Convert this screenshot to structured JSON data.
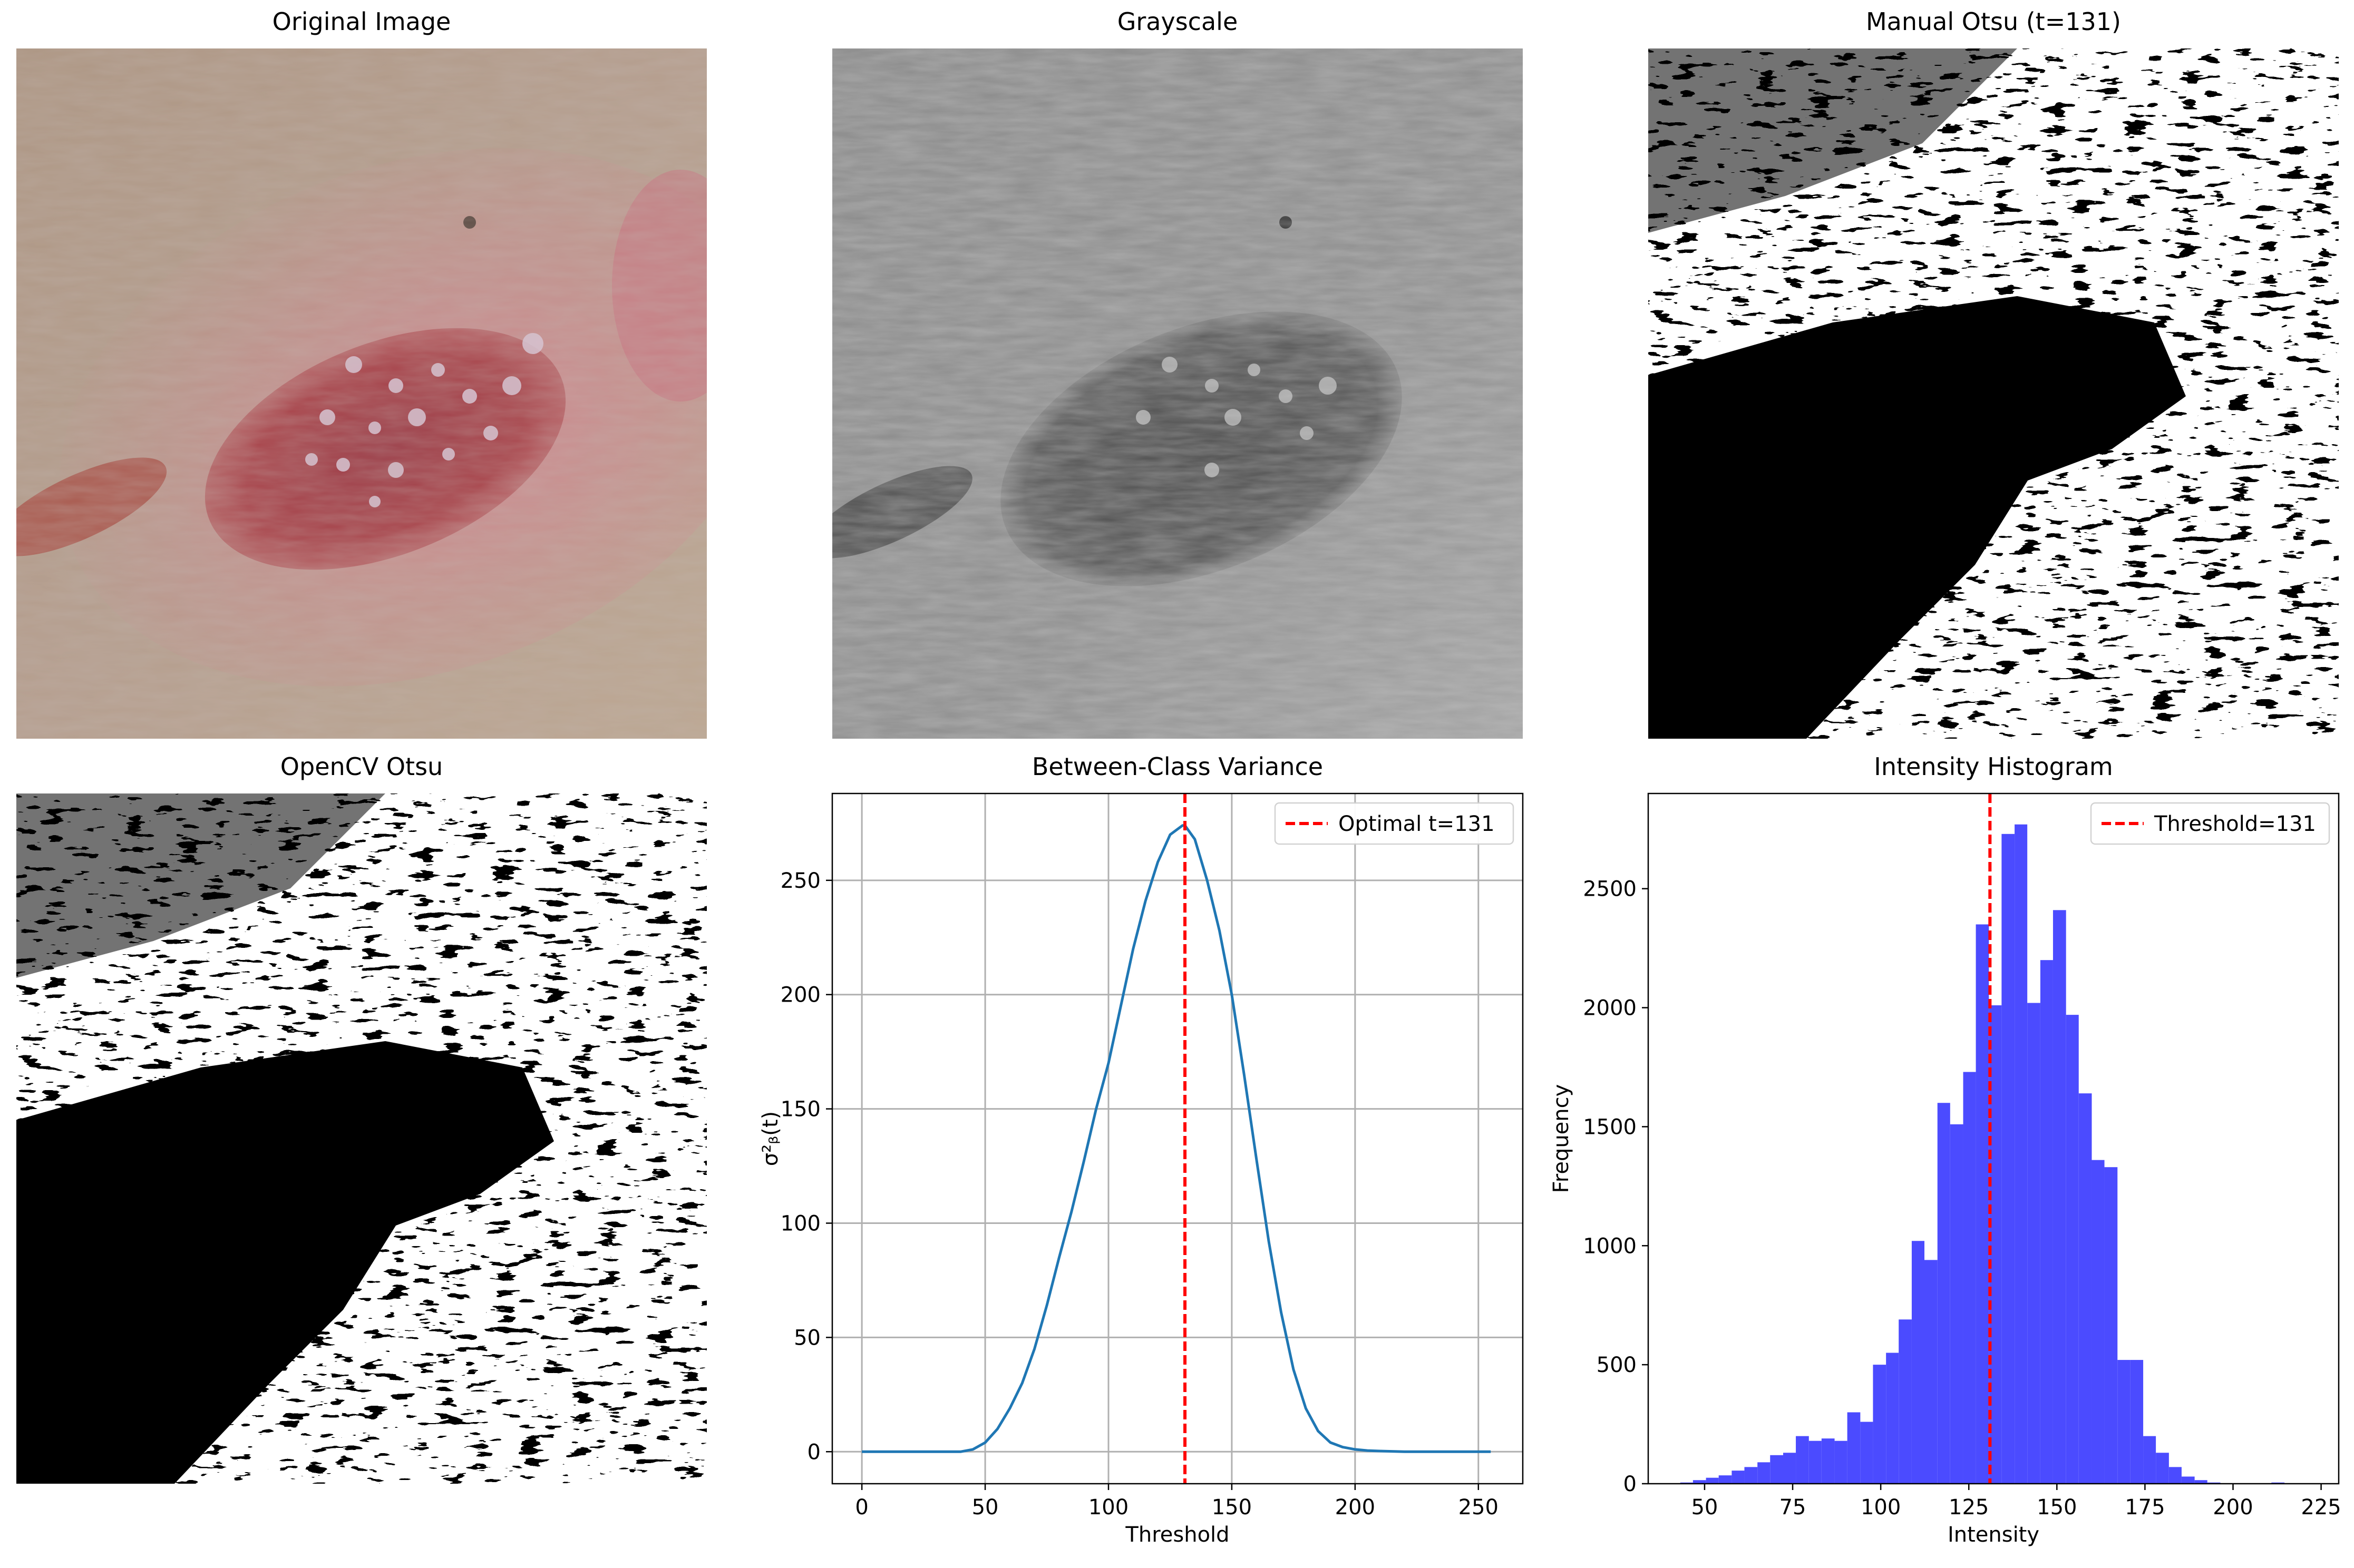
{
  "panels": {
    "original": {
      "title": "Original Image"
    },
    "grayscale": {
      "title": "Grayscale"
    },
    "manual": {
      "title": "Manual Otsu (t=131)"
    },
    "opencv": {
      "title": "OpenCV Otsu"
    },
    "variance": {
      "title": "Between-Class Variance"
    },
    "histogram": {
      "title": "Intensity Histogram"
    }
  },
  "colors": {
    "curve": "#1f77b4",
    "threshold_line": "#ff0000",
    "hist_bar": "#4b4bff",
    "skin_base": "#b79f8c",
    "lesion": "#a8434a",
    "redness": "#d77d8d"
  },
  "chart_data": [
    {
      "type": "line",
      "title": "Between-Class Variance",
      "xlabel": "Threshold",
      "ylabel": "σ²_B(t)",
      "xlim": [
        -12,
        268
      ],
      "ylim": [
        -14,
        288
      ],
      "xticks": [
        0,
        50,
        100,
        150,
        200,
        250
      ],
      "yticks": [
        0,
        50,
        100,
        150,
        200,
        250
      ],
      "grid": true,
      "legend_position": "top-right",
      "legend": [
        "Optimal t=131"
      ],
      "threshold": 131,
      "x": [
        0,
        40,
        45,
        50,
        55,
        60,
        65,
        70,
        75,
        80,
        85,
        90,
        95,
        100,
        105,
        110,
        115,
        120,
        125,
        130,
        131,
        135,
        140,
        145,
        150,
        155,
        160,
        165,
        170,
        175,
        180,
        185,
        190,
        195,
        200,
        205,
        210,
        220,
        230,
        240,
        255
      ],
      "y": [
        0,
        0,
        1,
        4,
        10,
        19,
        30,
        45,
        64,
        85,
        105,
        127,
        150,
        170,
        195,
        220,
        241,
        258,
        270,
        274,
        274,
        268,
        250,
        228,
        200,
        165,
        128,
        92,
        61,
        36,
        19,
        9,
        4,
        2,
        1,
        0.5,
        0.3,
        0,
        0,
        0,
        0
      ]
    },
    {
      "type": "bar",
      "title": "Intensity Histogram",
      "xlabel": "Intensity",
      "ylabel": "Frequency",
      "xlim": [
        34,
        230
      ],
      "ylim": [
        0,
        2900
      ],
      "xticks": [
        50,
        75,
        100,
        125,
        150,
        175,
        200,
        225
      ],
      "yticks": [
        0,
        500,
        1000,
        1500,
        2000,
        2500
      ],
      "grid": false,
      "legend_position": "top-right",
      "legend": [
        "Threshold=131"
      ],
      "threshold": 131,
      "bin_edges": [
        43.1,
        46.7,
        50.4,
        54.0,
        57.7,
        61.3,
        65.0,
        68.6,
        72.3,
        75.9,
        79.6,
        83.2,
        86.9,
        90.5,
        94.2,
        97.8,
        101.5,
        105.1,
        108.8,
        112.4,
        116.1,
        119.7,
        123.4,
        127.0,
        130.7,
        134.3,
        138.0,
        141.6,
        145.3,
        148.9,
        152.6,
        156.2,
        159.9,
        163.5,
        167.2,
        170.8,
        174.5,
        178.1,
        181.8,
        185.4,
        189.1,
        192.7,
        196.4,
        200.0,
        203.7,
        207.3,
        210.9,
        214.6,
        218.3,
        221.9
      ],
      "values": [
        5,
        15,
        25,
        35,
        55,
        70,
        90,
        120,
        130,
        200,
        180,
        190,
        180,
        300,
        260,
        500,
        550,
        690,
        1020,
        940,
        1600,
        1510,
        1730,
        2350,
        2010,
        2730,
        2770,
        2020,
        2200,
        2410,
        1970,
        1640,
        1360,
        1330,
        520,
        520,
        200,
        130,
        70,
        30,
        15,
        5,
        0,
        0,
        0,
        0,
        5,
        0,
        0
      ]
    }
  ]
}
